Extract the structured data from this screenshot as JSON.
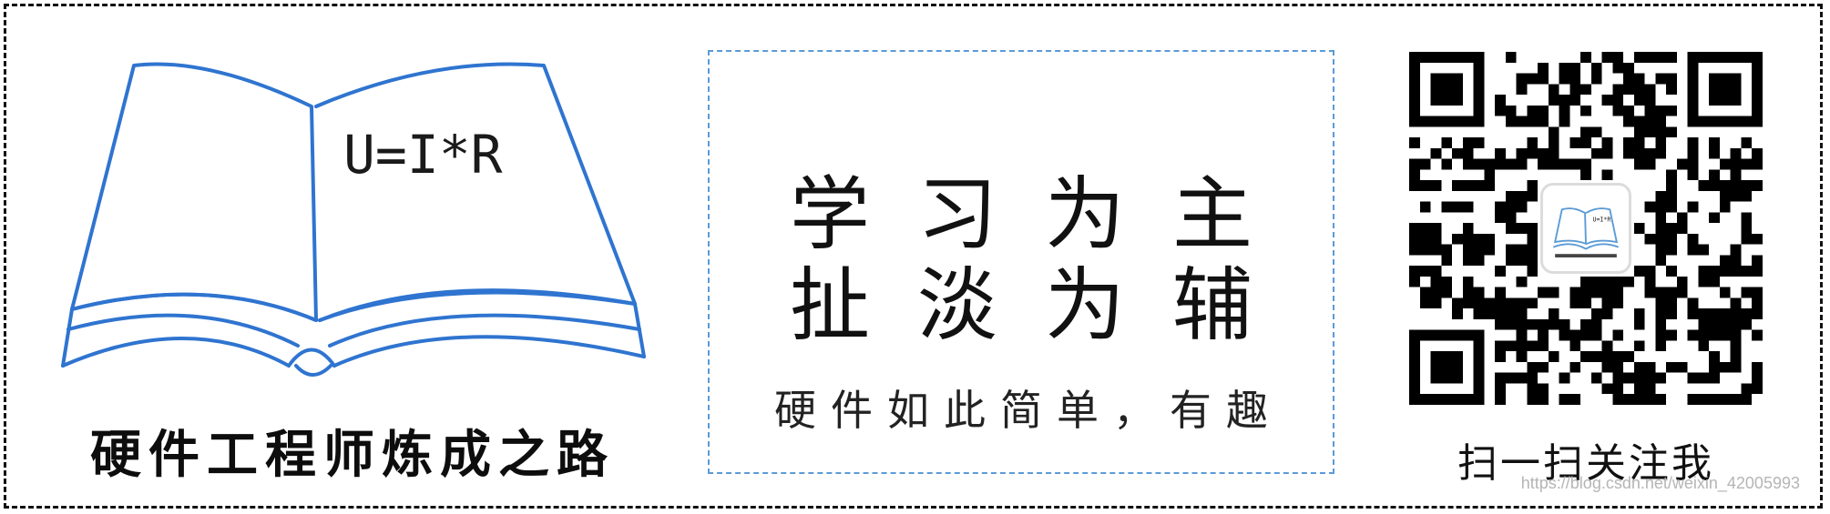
{
  "logo": {
    "formula": "U=I*R",
    "title": "硬件工程师炼成之路"
  },
  "slogan": {
    "line1": "学习为主",
    "line2": "扯淡为辅",
    "line3": "硬件如此简单，有趣"
  },
  "qr": {
    "caption": "扫一扫关注我"
  },
  "watermark": "https://blog.csdn.net/weixin_42005993",
  "colors": {
    "book_line": "#2f74d0",
    "slogan_border": "#5b9bd5",
    "text": "#111111"
  },
  "icons": [
    "open-book-icon",
    "qr-code-icon"
  ]
}
